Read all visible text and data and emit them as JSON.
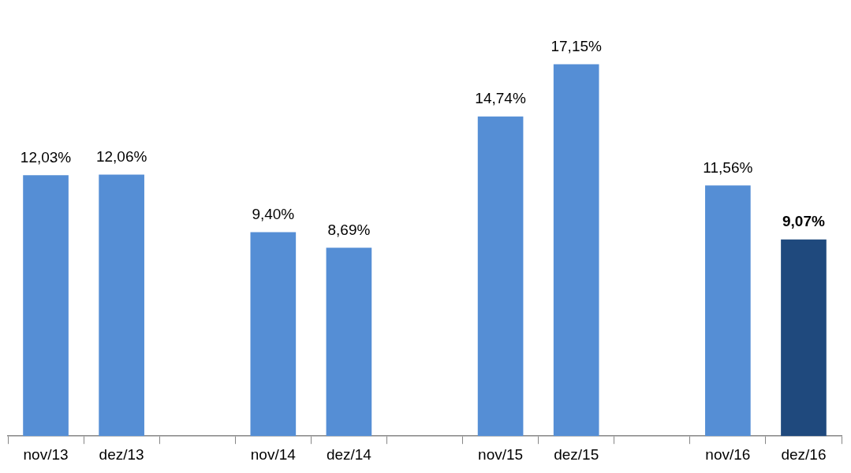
{
  "chart_data": {
    "type": "bar",
    "categories": [
      "nov/13",
      "dez/13",
      null,
      "nov/14",
      "dez/14",
      null,
      "nov/15",
      "dez/15",
      null,
      "nov/16",
      "dez/16"
    ],
    "values": [
      12.03,
      12.06,
      null,
      9.4,
      8.69,
      null,
      14.74,
      17.15,
      null,
      11.56,
      9.07
    ],
    "colors": [
      "#558ed5",
      "#558ed5",
      "#558ed5",
      "#558ed5",
      "#558ed5",
      "#558ed5",
      "#558ed5",
      "#558ed5",
      "#558ed5",
      "#558ed5",
      "#1f497d"
    ],
    "value_labels": [
      "12,03%",
      "12,06%",
      null,
      "9,40%",
      "8,69%",
      null,
      "14,74%",
      "17,15%",
      null,
      "11,56%",
      "9,07%"
    ],
    "grid": false,
    "legend": false
  }
}
